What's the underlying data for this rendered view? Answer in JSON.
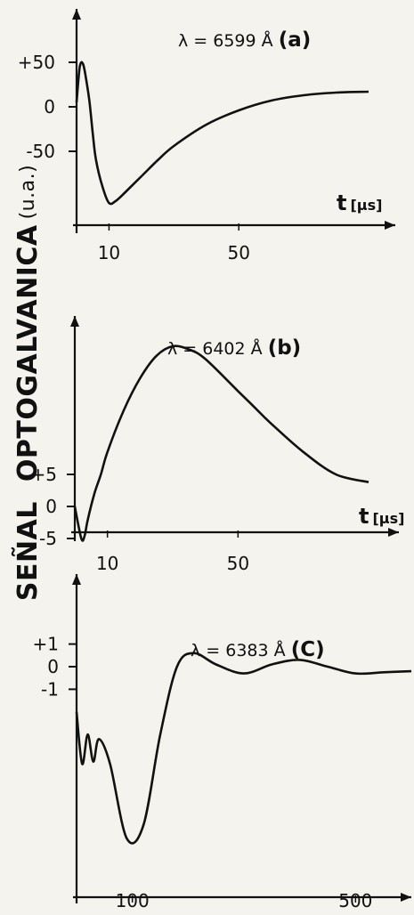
{
  "y_axis_label": {
    "word1": "SEÑAL",
    "word2": "OPTOGALVANICA",
    "unit": "(u.a.)"
  },
  "chart_data": [
    {
      "type": "line",
      "panel": "(a)",
      "title_text": "λ = 6599 Å",
      "title_tag": "(a)",
      "x_axis_label": "t",
      "x_axis_unit": "[µs]",
      "x_ticks": [
        10,
        50
      ],
      "y_ticks": [
        50,
        0,
        -50
      ],
      "y_tick_labels": [
        "+50",
        "0",
        "-50"
      ],
      "x": [
        0,
        1,
        2,
        3,
        4,
        5,
        6,
        8,
        10,
        12,
        15,
        20,
        25,
        30,
        40,
        50,
        60,
        70,
        80,
        90
      ],
      "y": [
        5,
        45,
        48,
        30,
        5,
        -30,
        -60,
        -90,
        -108,
        -106,
        -96,
        -78,
        -60,
        -44,
        -20,
        -4,
        7,
        13,
        16,
        17
      ]
    },
    {
      "type": "line",
      "panel": "(b)",
      "title_text": "λ = 6402 Å",
      "title_tag": "(b)",
      "x_axis_label": "t",
      "x_axis_unit": "[µs]",
      "x_ticks": [
        10,
        50
      ],
      "y_ticks": [
        5,
        0,
        -5
      ],
      "y_tick_labels": [
        "+5",
        "0",
        "-5"
      ],
      "x": [
        0,
        2,
        3,
        4,
        6,
        8,
        10,
        15,
        20,
        25,
        30,
        35,
        40,
        50,
        55,
        60,
        70,
        80,
        90
      ],
      "y": [
        0,
        -5,
        -4.6,
        -2,
        2,
        5,
        8.5,
        15,
        20,
        23.5,
        25,
        24.5,
        23,
        18,
        15.5,
        13,
        8.5,
        5,
        3.8
      ]
    },
    {
      "type": "line",
      "panel": "(c)",
      "title_text": "λ = 6383 Å",
      "title_tag": "(C)",
      "x_axis_label": "t",
      "x_axis_unit": "[µs]",
      "x_ticks": [
        100,
        500
      ],
      "y_ticks": [
        1,
        0,
        -1
      ],
      "y_tick_labels": [
        "+1",
        "0",
        "-1"
      ],
      "x": [
        0,
        10,
        20,
        30,
        40,
        60,
        90,
        120,
        150,
        180,
        210,
        250,
        300,
        350,
        400,
        450,
        500,
        550,
        600
      ],
      "y": [
        -2,
        -4.3,
        -3,
        -4.2,
        -3.2,
        -4.3,
        -7.6,
        -7,
        -3,
        0,
        0.6,
        0.1,
        -0.3,
        0.1,
        0.3,
        0,
        -0.3,
        -0.25,
        -0.2
      ]
    }
  ]
}
